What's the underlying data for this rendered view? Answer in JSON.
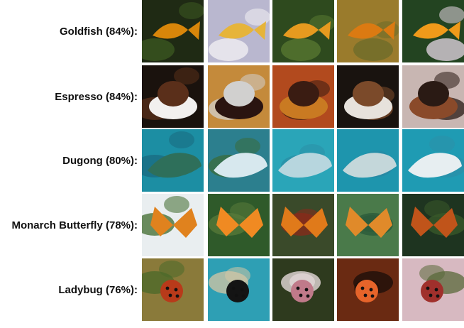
{
  "rows": [
    {
      "label": "Goldfish (84%):",
      "thumbs": [
        {
          "desc": "goldfish-1",
          "bg": "#1f2a14",
          "main": "#d8860a",
          "accent": "#3c5a20"
        },
        {
          "desc": "goldfish-2",
          "bg": "#b9b7cf",
          "main": "#e6b43a",
          "accent": "#f4f2f4"
        },
        {
          "desc": "goldfish-3",
          "bg": "#2e4a1e",
          "main": "#e69a1f",
          "accent": "#5a7a32"
        },
        {
          "desc": "goldfish-4",
          "bg": "#9a7b2c",
          "main": "#db7a12",
          "accent": "#6b6b2a"
        },
        {
          "desc": "goldfish-5",
          "bg": "#234421",
          "main": "#f09a1a",
          "accent": "#e7d7e6"
        }
      ]
    },
    {
      "label": "Espresso (84%):",
      "thumbs": [
        {
          "desc": "espresso-1",
          "bg": "#1a120d",
          "main": "#f2f0ef",
          "accent": "#5a2f1a"
        },
        {
          "desc": "espresso-2",
          "bg": "#c48a3b",
          "main": "#2a1410",
          "accent": "#d1d0cf"
        },
        {
          "desc": "espresso-3",
          "bg": "#b24a1e",
          "main": "#c97a22",
          "accent": "#3a1c12"
        },
        {
          "desc": "espresso-4",
          "bg": "#19130f",
          "main": "#e7e2dc",
          "accent": "#7b4a2a"
        },
        {
          "desc": "espresso-5",
          "bg": "#c8b6b2",
          "main": "#8a4a2a",
          "accent": "#2a1a14"
        }
      ]
    },
    {
      "label": "Dugong (80%):",
      "thumbs": [
        {
          "desc": "dugong-1",
          "bg": "#1c8ea3",
          "main": "#2e6f5a",
          "accent": "#1a6a80"
        },
        {
          "desc": "dugong-2",
          "bg": "#2c7f8e",
          "main": "#d7e8ee",
          "accent": "#3a6b3a"
        },
        {
          "desc": "dugong-3",
          "bg": "#2aa5b8",
          "main": "#b7d6de",
          "accent": "#2a8fa6"
        },
        {
          "desc": "dugong-4",
          "bg": "#1e95ad",
          "main": "#c4d7da",
          "accent": "#2a86a2"
        },
        {
          "desc": "dugong-5",
          "bg": "#1f9bb3",
          "main": "#e7eef1",
          "accent": "#2b8fa8"
        }
      ]
    },
    {
      "label": "Monarch Butterfly (78%):",
      "thumbs": [
        {
          "desc": "monarch-1",
          "bg": "#e9eef0",
          "main": "#e0821e",
          "accent": "#3e6a2c"
        },
        {
          "desc": "monarch-2",
          "bg": "#2f5a2a",
          "main": "#f08a22",
          "accent": "#5a7b3a"
        },
        {
          "desc": "monarch-3",
          "bg": "#3a4a2a",
          "main": "#e07a1a",
          "accent": "#8a2a1a"
        },
        {
          "desc": "monarch-4",
          "bg": "#4a7a4a",
          "main": "#e08a2a",
          "accent": "#2a5a3a"
        },
        {
          "desc": "monarch-5",
          "bg": "#1e3420",
          "main": "#c0541a",
          "accent": "#3a5a2a"
        }
      ]
    },
    {
      "label": "Ladybug (76%):",
      "thumbs": [
        {
          "desc": "ladybug-1",
          "bg": "#8a7a3a",
          "main": "#b83a1a",
          "accent": "#4a6a2a"
        },
        {
          "desc": "ladybug-2",
          "bg": "#2e9fb4",
          "main": "#141414",
          "accent": "#d6c6a4"
        },
        {
          "desc": "ladybug-3",
          "bg": "#2e3a1e",
          "main": "#c07a8a",
          "accent": "#f0e4e6"
        },
        {
          "desc": "ladybug-4",
          "bg": "#6a2a12",
          "main": "#e6642a",
          "accent": "#1a0e0a"
        },
        {
          "desc": "ladybug-5",
          "bg": "#d7b9c1",
          "main": "#a0302c",
          "accent": "#5a6a3a"
        }
      ]
    }
  ]
}
